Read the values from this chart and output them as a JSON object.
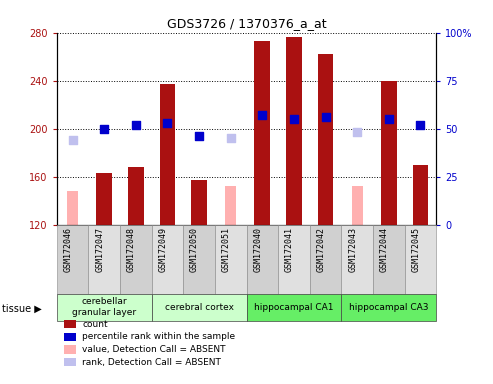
{
  "title": "GDS3726 / 1370376_a_at",
  "samples": [
    "GSM172046",
    "GSM172047",
    "GSM172048",
    "GSM172049",
    "GSM172050",
    "GSM172051",
    "GSM172040",
    "GSM172041",
    "GSM172042",
    "GSM172043",
    "GSM172044",
    "GSM172045"
  ],
  "count_values": [
    null,
    163,
    168,
    237,
    157,
    null,
    273,
    276,
    262,
    null,
    240,
    170
  ],
  "count_absent": [
    148,
    null,
    null,
    null,
    null,
    152,
    null,
    null,
    null,
    152,
    null,
    null
  ],
  "rank_present_pct": [
    null,
    50,
    52,
    53,
    46,
    null,
    57,
    55,
    56,
    null,
    55,
    52
  ],
  "rank_absent_pct": [
    44,
    null,
    null,
    null,
    null,
    45,
    null,
    null,
    null,
    48,
    null,
    null
  ],
  "ylim_left": [
    120,
    280
  ],
  "ylim_right": [
    0,
    100
  ],
  "yticks_left": [
    120,
    160,
    200,
    240,
    280
  ],
  "yticks_right": [
    0,
    25,
    50,
    75,
    100
  ],
  "tissues": [
    {
      "label": "cerebellar\ngranular layer",
      "start": 0,
      "end": 3,
      "color": "#ccffcc"
    },
    {
      "label": "cerebral cortex",
      "start": 3,
      "end": 6,
      "color": "#ccffcc"
    },
    {
      "label": "hippocampal CA1",
      "start": 6,
      "end": 9,
      "color": "#66ee66"
    },
    {
      "label": "hippocampal CA3",
      "start": 9,
      "end": 12,
      "color": "#66ee66"
    }
  ],
  "color_count": "#aa1111",
  "color_rank": "#0000cc",
  "color_count_absent": "#ffb0b0",
  "color_rank_absent": "#c0c0ee",
  "bar_width": 0.5,
  "absent_bar_width": 0.35,
  "dot_size": 40,
  "legend_items": [
    {
      "color": "#aa1111",
      "label": "count"
    },
    {
      "color": "#0000cc",
      "label": "percentile rank within the sample"
    },
    {
      "color": "#ffb0b0",
      "label": "value, Detection Call = ABSENT"
    },
    {
      "color": "#c0c0ee",
      "label": "rank, Detection Call = ABSENT"
    }
  ],
  "figsize": [
    4.93,
    3.84
  ],
  "dpi": 100
}
